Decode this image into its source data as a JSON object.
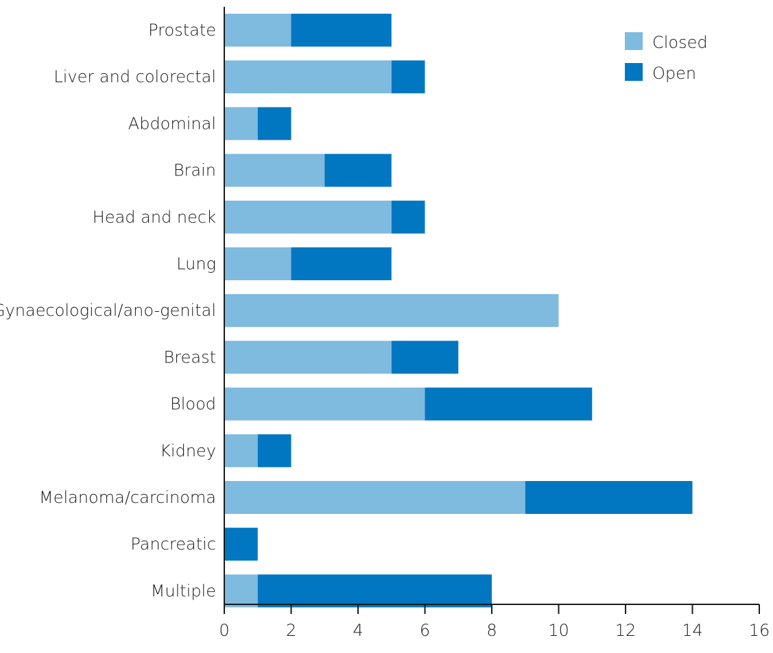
{
  "chart_data": {
    "type": "bar",
    "orientation": "horizontal",
    "stacked": true,
    "categories": [
      "Prostate",
      "Liver and colorectal",
      "Abdominal",
      "Brain",
      "Head and neck",
      "Lung",
      "Gynaecological/ano-genital",
      "Breast",
      "Blood",
      "Kidney",
      "Melanoma/carcinoma",
      "Pancreatic",
      "Multiple"
    ],
    "series": [
      {
        "name": "Closed",
        "color": "#7fbadf",
        "values": [
          2,
          5,
          1,
          3,
          5,
          2,
          10,
          5,
          6,
          1,
          9,
          0,
          1
        ]
      },
      {
        "name": "Open",
        "color": "#0077c0",
        "values": [
          3,
          1,
          1,
          2,
          1,
          3,
          0,
          2,
          5,
          1,
          5,
          1,
          7
        ]
      }
    ],
    "xlim": [
      0,
      16
    ],
    "xticks": [
      "0",
      "2",
      "4",
      "6",
      "8",
      "10",
      "12",
      "14",
      "16"
    ],
    "legend_position": "top-right",
    "grid": false
  }
}
